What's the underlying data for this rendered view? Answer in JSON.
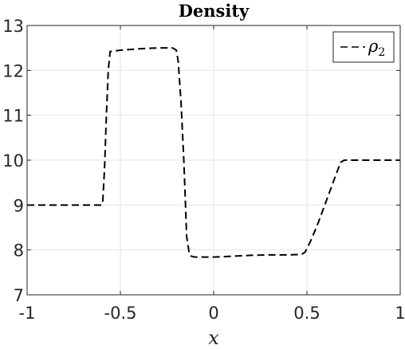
{
  "chart_data": {
    "type": "line",
    "title": "Density",
    "xlabel": "x",
    "ylabel": "",
    "xlim": [
      -1,
      1
    ],
    "ylim": [
      7,
      13
    ],
    "xticks": [
      -1,
      -0.5,
      0,
      0.5,
      1
    ],
    "xtick_labels": [
      "-1",
      "-0.5",
      "0",
      "0.5",
      "1"
    ],
    "yticks": [
      7,
      8,
      9,
      10,
      11,
      12,
      13
    ],
    "ytick_labels": [
      "7",
      "8",
      "9",
      "10",
      "11",
      "12",
      "13"
    ],
    "grid": true,
    "legend": {
      "placement": "top-right",
      "entries": [
        {
          "symbol": "ρ",
          "subscript": "2"
        }
      ]
    },
    "series": [
      {
        "legend_index": 0,
        "color": "#000000",
        "style": "dashed",
        "x": [
          -1.0,
          -0.6,
          -0.595,
          -0.585,
          -0.575,
          -0.565,
          -0.555,
          -0.5,
          -0.4,
          -0.3,
          -0.22,
          -0.2,
          -0.19,
          -0.175,
          -0.16,
          -0.15,
          -0.145,
          -0.13,
          -0.12,
          -0.1,
          0.0,
          0.1,
          0.2,
          0.3,
          0.4,
          0.47,
          0.49,
          0.52,
          0.56,
          0.6,
          0.64,
          0.68,
          0.7,
          1.0
        ],
        "y": [
          9.0,
          9.0,
          9.05,
          9.8,
          11.0,
          12.0,
          12.42,
          12.45,
          12.48,
          12.5,
          12.5,
          12.45,
          12.2,
          11.3,
          10.0,
          8.9,
          8.3,
          7.9,
          7.86,
          7.84,
          7.84,
          7.86,
          7.88,
          7.89,
          7.89,
          7.9,
          7.95,
          8.2,
          8.6,
          9.05,
          9.5,
          9.95,
          10.0,
          10.0
        ]
      }
    ]
  }
}
